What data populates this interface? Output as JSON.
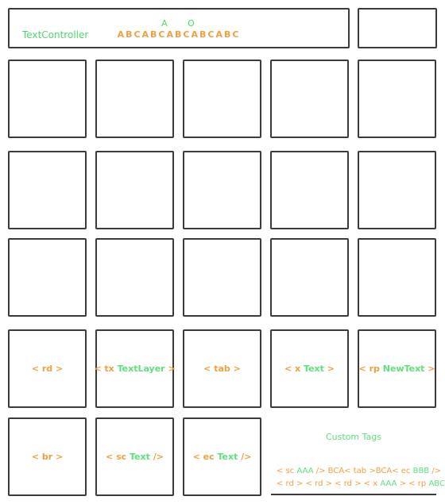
{
  "header": {
    "controller_label": "TextController",
    "small_a": "A",
    "small_o": "O",
    "sequence": "ABCABCABCABCABC"
  },
  "tiles": {
    "rd": {
      "open": "< rd >"
    },
    "tx": {
      "open": "< tx",
      "text": "TextLayer",
      "close": ">"
    },
    "tab": {
      "open": "< tab >"
    },
    "x": {
      "open": "< x",
      "text": "Text",
      "close": ">"
    },
    "rp": {
      "open": "< rp",
      "text": "NewText",
      "close": ">"
    },
    "br": {
      "open": "< br >"
    },
    "sc": {
      "open": "< sc",
      "text": "Text",
      "close": "/>"
    },
    "ec": {
      "open": "< ec",
      "text": "Text",
      "close": "/>"
    }
  },
  "custom_tags": {
    "title": "Custom Tags",
    "line1": {
      "p1": "< sc",
      "p2": "AAA",
      "p3": "/>",
      "p4": "BCA",
      "p5": "< tab >",
      "p6": "BCA",
      "p7": "< ec",
      "p8": "BBB",
      "p9": "/>"
    },
    "line2": {
      "p1": "< rd > < rd > < rd > < x",
      "p2": "AAA",
      "p3": "> < rp",
      "p4": "ABC",
      "p5": ">"
    }
  },
  "colors": {
    "border": "#3a3a3a",
    "tag_orange": "#f0a040",
    "text_green": "#5ee07e"
  }
}
